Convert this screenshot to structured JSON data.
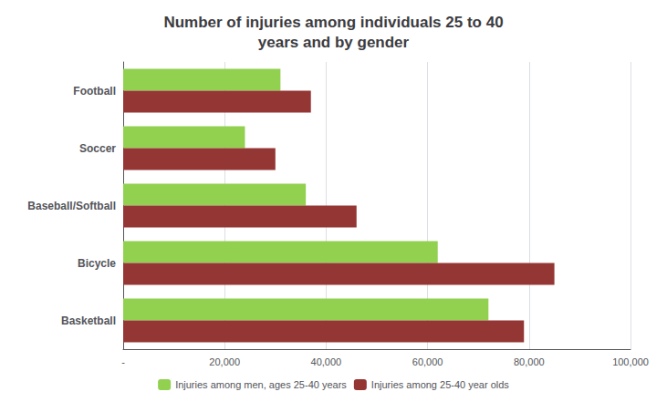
{
  "chart_data": {
    "type": "bar",
    "orientation": "horizontal",
    "title": "Number of injuries among individuals 25 to 40\nyears and by gender",
    "categories": [
      "Basketball",
      "Bicycle",
      "Baseball/Softball",
      "Soccer",
      "Football"
    ],
    "series": [
      {
        "name": "Injuries among men, ages 25-40 years",
        "color": "#92D050",
        "values": [
          72000,
          62000,
          36000,
          24000,
          31000
        ]
      },
      {
        "name": "Injuries among 25-40 year olds",
        "color": "#943634",
        "values": [
          79000,
          85000,
          46000,
          30000,
          37000
        ]
      }
    ],
    "xlim": [
      0,
      100000
    ],
    "xticks": [
      {
        "value": 0,
        "label": "-"
      },
      {
        "value": 20000,
        "label": "20,000"
      },
      {
        "value": 40000,
        "label": "40,000"
      },
      {
        "value": 60000,
        "label": "60,000"
      },
      {
        "value": 80000,
        "label": "80,000"
      },
      {
        "value": 100000,
        "label": "100,000"
      }
    ],
    "grid": true,
    "legend": "bottom"
  }
}
